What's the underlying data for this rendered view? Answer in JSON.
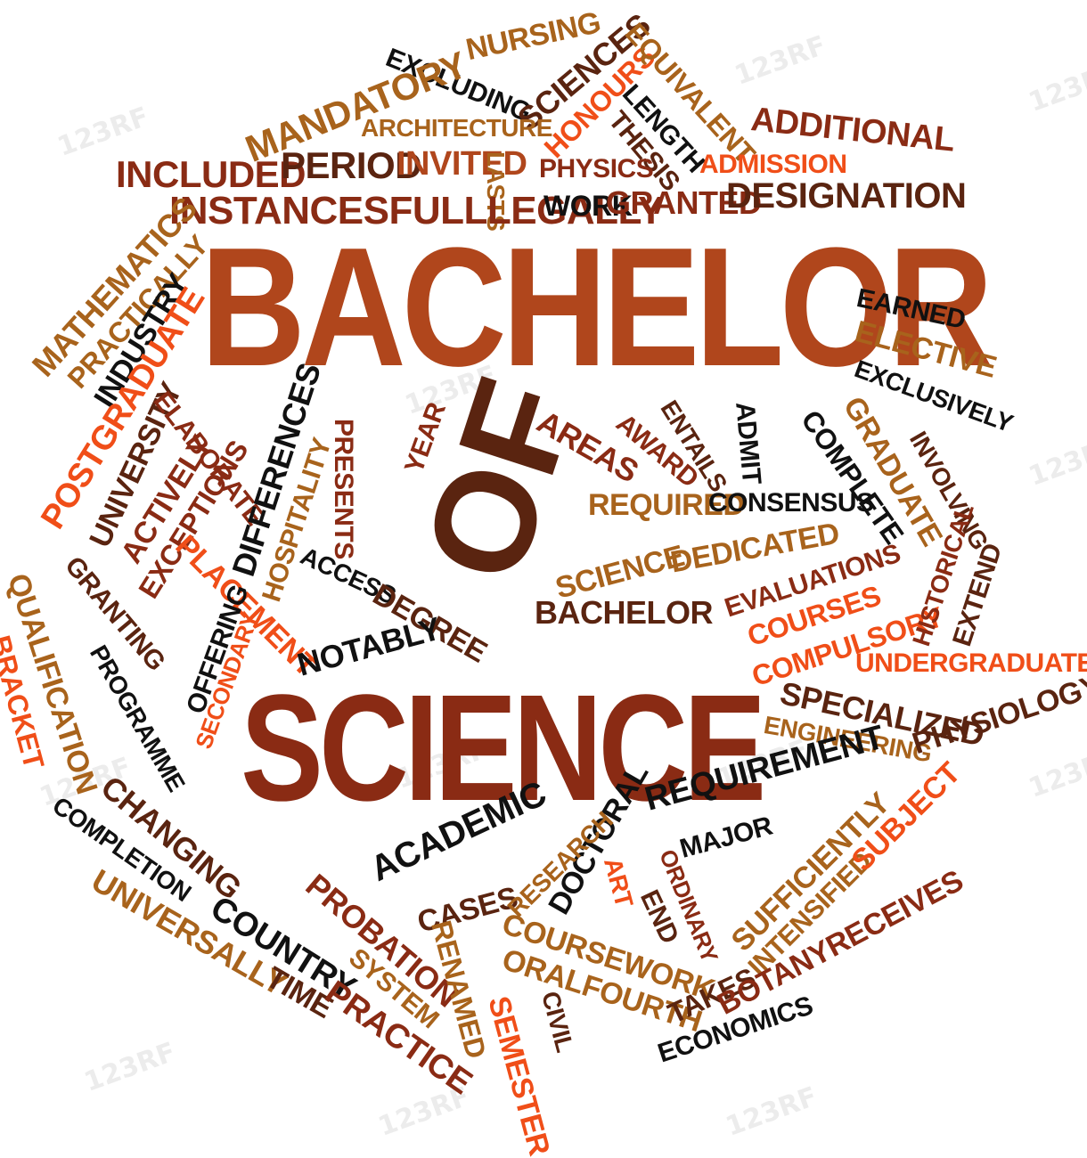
{
  "palette": {
    "black": "#111111",
    "dark_brown": "#5a2410",
    "maroon": "#8a2b14",
    "rust": "#b0461c",
    "bronze": "#a8631c",
    "orange": "#f04e18",
    "background": "#ffffff"
  },
  "hero": {
    "bachelor": "BACHELOR",
    "of": "OF",
    "science": "SCIENCE"
  },
  "words": {
    "nursing": "NURSING",
    "sciences": "SCIENCES",
    "equivalent": "EQUIVALENT",
    "excluding": "EXCLUDING",
    "honours": "HONOURS",
    "length": "LENGTH",
    "thesis": "THESIS",
    "additional": "ADDITIONAL",
    "mandatory": "MANDATORY",
    "architecture": "ARCHITECTURE",
    "physics": "PHYSICS",
    "admission": "ADMISSION",
    "included": "INCLUDED",
    "period": "PERIOD",
    "invited": "INVITED",
    "lasts": "LASTS",
    "instancesfulllegally": "INSTANCESFULLLEGALLY",
    "work": "WORK",
    "granted": "GRANTED",
    "designation": "DESIGNATION",
    "mathematics": "MATHEMATICS",
    "practically": "PRACTICALLY",
    "industry": "INDUSTRY",
    "earned": "EARNED",
    "elective": "ELECTIVE",
    "exclusively": "EXCLUSIVELY",
    "postgraduate": "POSTGRADUATE",
    "university": "UNIVERSITY",
    "elaborate": "ELABORATE",
    "actively": "ACTIVELY",
    "exceptions": "EXCEPTIONS",
    "differences": "DIFFERENCES",
    "hospitality": "HOSPITALITY",
    "presents": "PRESENTS",
    "year": "YEAR",
    "areas": "AREAS",
    "award": "AWARD",
    "entails": "ENTAILS",
    "admit": "ADMIT",
    "complete": "COMPLETE",
    "graduate": "GRADUATE",
    "involving": "INVOLVING",
    "required": "REQUIRED",
    "consensus": "CONSENSUS",
    "science": "SCIENCE",
    "dedicated": "DEDICATED",
    "evaluations": "EVALUATIONS",
    "courses": "COURSES",
    "compulsory": "COMPULSORY",
    "historical": "HISTORICAL",
    "extend": "EXTEND",
    "bachelor": "BACHELOR",
    "qualification": "QUALIFICATION",
    "bracket": "BRACKET",
    "granting": "GRANTING",
    "placement": "PLACEMENT",
    "access": "ACCESS",
    "degree": "DEGREE",
    "programme": "PROGRAMME",
    "offering": "OFFERING",
    "secondary": "SECONDARY",
    "notably": "NOTABLY",
    "undergraduate": "UNDERGRADUATE",
    "specialized": "SPECIALIZED",
    "engineering": "ENGINEERING",
    "physiology": "PHYSIOLOGY",
    "changing": "CHANGING",
    "completion": "COMPLETION",
    "universally": "UNIVERSALLY",
    "time": "TIME",
    "country": "COUNTRY",
    "requirement": "REQUIREMENT",
    "academic": "ACADEMIC",
    "doctoral": "DOCTORAL",
    "major": "MAJOR",
    "cases": "CASES",
    "research": "RESEARCH",
    "art": "ART",
    "end": "END",
    "ordinary": "ORDINARY",
    "sufficiently": "SUFFICIENTLY",
    "intensified": "INTENSIFIED",
    "subject": "SUBJECT",
    "probation": "PROBATION",
    "system": "SYSTEM",
    "practice": "PRACTICE",
    "renamed": "RENAMED",
    "coursework": "COURSEWORK",
    "oralfourth": "ORALFOURTH",
    "semester": "SEMESTER",
    "civil": "CIVIL",
    "takes": "TAKES",
    "botanyreceives": "BOTANYRECEIVES",
    "economics": "ECONOMICS"
  },
  "watermark": {
    "text": "123RF"
  }
}
